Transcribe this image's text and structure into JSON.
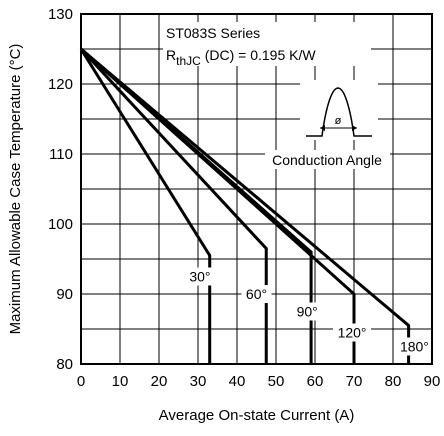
{
  "chart_data": {
    "type": "line",
    "title": "",
    "xlabel": "Average On-state Current (A)",
    "ylabel": "Maximum Allowable Case Temperature (°C)",
    "xlim": [
      0,
      90
    ],
    "ylim": [
      80,
      130
    ],
    "x_ticks": [
      "0",
      "10",
      "20",
      "30",
      "40",
      "50",
      "60",
      "70",
      "80",
      "90"
    ],
    "y_ticks": [
      "80",
      "90",
      "100",
      "110",
      "120",
      "130"
    ],
    "grid": true,
    "annotations": {
      "series_text": "ST083S Series",
      "rth_symbol": "R",
      "rth_sub": "thJC",
      "rth_rest": "(DC) = 0.195 K/W",
      "waveform_symbol": "ø",
      "waveform_label": "Conduction Angle"
    },
    "series": [
      {
        "label": "30°",
        "points": [
          [
            0,
            125
          ],
          [
            33,
            95.5
          ]
        ],
        "max_current": 33
      },
      {
        "label": "60°",
        "points": [
          [
            0,
            125
          ],
          [
            47.5,
            96.5
          ]
        ],
        "max_current": 47.5
      },
      {
        "label": "90°",
        "points": [
          [
            0,
            125
          ],
          [
            59,
            96
          ]
        ],
        "max_current": 59
      },
      {
        "label": "120°",
        "points": [
          [
            0,
            125
          ],
          [
            70,
            90
          ]
        ],
        "max_current": 70
      },
      {
        "label": "180°",
        "points": [
          [
            0,
            125
          ],
          [
            84,
            85.5
          ]
        ],
        "max_current": 84
      }
    ]
  }
}
